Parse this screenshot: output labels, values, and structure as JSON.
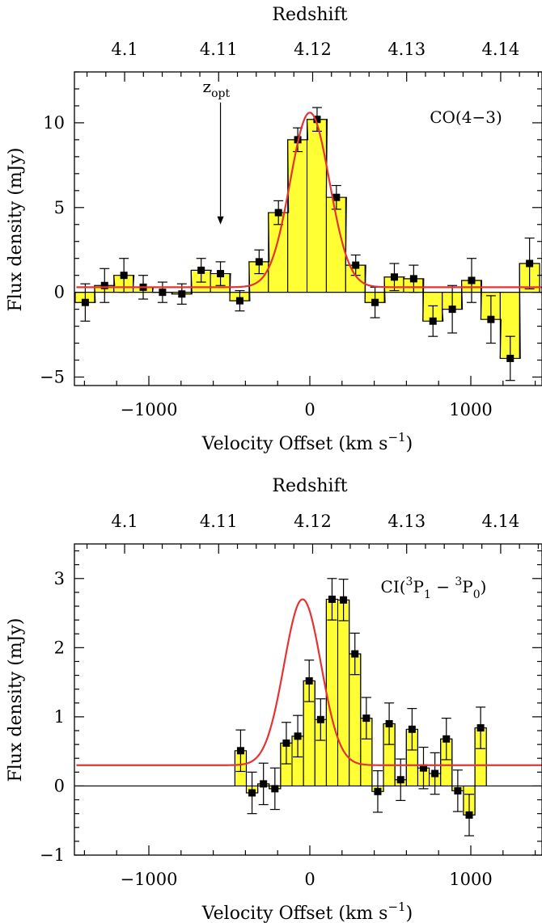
{
  "chart_data": [
    {
      "type": "bar",
      "panel_label": "CO(4−3)",
      "xlabel": "Velocity Offset (km s⁻¹)",
      "ylabel": "Flux density (mJy)",
      "top_axis_label": "Redshift",
      "xlim": [
        -1450,
        1450
      ],
      "ylim": [
        -5.5,
        13
      ],
      "x_ticks": [
        -1000,
        0,
        1000
      ],
      "x_tick_labels": [
        "−1000",
        "0",
        "1000"
      ],
      "y_ticks": [
        -5,
        0,
        5,
        10
      ],
      "y_tick_labels": [
        "−5",
        "0",
        "5",
        "10"
      ],
      "top_ticks": [
        4.1,
        4.11,
        4.12,
        4.13,
        4.14
      ],
      "top_tick_labels": [
        "4.1",
        "4.11",
        "4.12",
        "4.13",
        "4.14"
      ],
      "redshift_reference": {
        "z0": 4.1197,
        "velocity_per_0_01_z": 584
      },
      "channel_width": 125,
      "channels": [
        {
          "v": -1395,
          "flux": -0.6,
          "err": 1.1
        },
        {
          "v": -1275,
          "flux": 0.4,
          "err": 1.0
        },
        {
          "v": -1155,
          "flux": 1.0,
          "err": 1.0
        },
        {
          "v": -1035,
          "flux": 0.3,
          "err": 0.7
        },
        {
          "v": -915,
          "flux": 0.0,
          "err": 0.6
        },
        {
          "v": -795,
          "flux": -0.1,
          "err": 0.6
        },
        {
          "v": -675,
          "flux": 1.3,
          "err": 0.7
        },
        {
          "v": -555,
          "flux": 1.1,
          "err": 0.7
        },
        {
          "v": -435,
          "flux": -0.5,
          "err": 0.6
        },
        {
          "v": -315,
          "flux": 1.8,
          "err": 0.7
        },
        {
          "v": -195,
          "flux": 4.7,
          "err": 0.7
        },
        {
          "v": -75,
          "flux": 9.0,
          "err": 0.7
        },
        {
          "v": 45,
          "flux": 10.2,
          "err": 0.7
        },
        {
          "v": 165,
          "flux": 5.6,
          "err": 0.7
        },
        {
          "v": 285,
          "flux": 1.6,
          "err": 0.6
        },
        {
          "v": 405,
          "flux": -0.6,
          "err": 0.9
        },
        {
          "v": 525,
          "flux": 0.9,
          "err": 0.8
        },
        {
          "v": 645,
          "flux": 0.8,
          "err": 0.8
        },
        {
          "v": 765,
          "flux": -1.7,
          "err": 0.9
        },
        {
          "v": 885,
          "flux": -1.0,
          "err": 1.4
        },
        {
          "v": 1005,
          "flux": 0.7,
          "err": 1.3
        },
        {
          "v": 1125,
          "flux": -1.6,
          "err": 1.4
        },
        {
          "v": 1245,
          "flux": -3.9,
          "err": 1.3
        },
        {
          "v": 1365,
          "flux": 1.7,
          "err": 1.5
        }
      ],
      "gaussian_fit": {
        "amplitude": 10.3,
        "center": 0,
        "sigma": 122,
        "baseline": 0.3
      },
      "annotation": {
        "text": "z",
        "subscript": "opt",
        "arrow_x": -555,
        "arrow_top": 11.2,
        "arrow_bottom": 4.0,
        "label_y": 11.8
      },
      "fill_color": "#ffff33",
      "fit_color": "#e53333"
    },
    {
      "type": "bar",
      "panel_label": {
        "main": "CI(",
        "sup1": "3",
        "p1": "P",
        "sub1": "1",
        "dash": " − ",
        "sup2": "3",
        "p2": "P",
        "sub2": "0",
        "close": ")"
      },
      "xlabel": "Velocity Offset (km s⁻¹)",
      "ylabel": "Flux density (mJy)",
      "top_axis_label": "Redshift",
      "xlim": [
        -1450,
        1450
      ],
      "ylim": [
        -1,
        3.5
      ],
      "x_ticks": [
        -1000,
        0,
        1000
      ],
      "x_tick_labels": [
        "−1000",
        "0",
        "1000"
      ],
      "y_ticks": [
        -1,
        0,
        1,
        2,
        3
      ],
      "y_tick_labels": [
        "−1",
        "0",
        "1",
        "2",
        "3"
      ],
      "top_ticks": [
        4.1,
        4.11,
        4.12,
        4.13,
        4.14
      ],
      "top_tick_labels": [
        "4.1",
        "4.11",
        "4.12",
        "4.13",
        "4.14"
      ],
      "redshift_reference": {
        "z0": 4.1197,
        "velocity_per_0_01_z": 584
      },
      "channel_width": 71,
      "channels": [
        {
          "v": -817,
          "flux": 0.51,
          "err": 0.3
        },
        {
          "v": -746,
          "flux": -0.1,
          "err": 0.3
        },
        {
          "v": -675,
          "flux": 0.03,
          "err": 0.3
        },
        {
          "v": -604,
          "flux": -0.04,
          "err": 0.3
        },
        {
          "v": -533,
          "flux": 0.62,
          "err": 0.3
        },
        {
          "v": -462,
          "flux": 0.72,
          "err": 0.3
        },
        {
          "v": -391,
          "flux": 1.52,
          "err": 0.3
        },
        {
          "v": -320,
          "flux": 0.96,
          "err": 0.3
        },
        {
          "v": -249,
          "flux": 2.7,
          "err": 0.3
        },
        {
          "v": -178,
          "flux": 2.69,
          "err": 0.3
        },
        {
          "v": -107,
          "flux": 1.91,
          "err": 0.3
        },
        {
          "v": -36,
          "flux": 0.98,
          "err": 0.3
        },
        {
          "v": 35,
          "flux": -0.08,
          "err": 0.3
        },
        {
          "v": 106,
          "flux": 0.9,
          "err": 0.3
        },
        {
          "v": 177,
          "flux": 0.09,
          "err": 0.3
        },
        {
          "v": 248,
          "flux": 0.82,
          "err": 0.3
        },
        {
          "v": 319,
          "flux": 0.26,
          "err": 0.3
        },
        {
          "v": 390,
          "flux": 0.18,
          "err": 0.3
        },
        {
          "v": 461,
          "flux": 0.68,
          "err": 0.3
        },
        {
          "v": 532,
          "flux": -0.07,
          "err": 0.3
        },
        {
          "v": 603,
          "flux": -0.42,
          "err": 0.3
        },
        {
          "v": 674,
          "flux": 0.84,
          "err": 0.3
        }
      ],
      "channel_shift": 387,
      "gaussian_fit": {
        "amplitude": 2.4,
        "center": -45,
        "sigma": 115,
        "baseline": 0.3
      },
      "fill_color": "#ffff33",
      "fit_color": "#e53333"
    }
  ]
}
